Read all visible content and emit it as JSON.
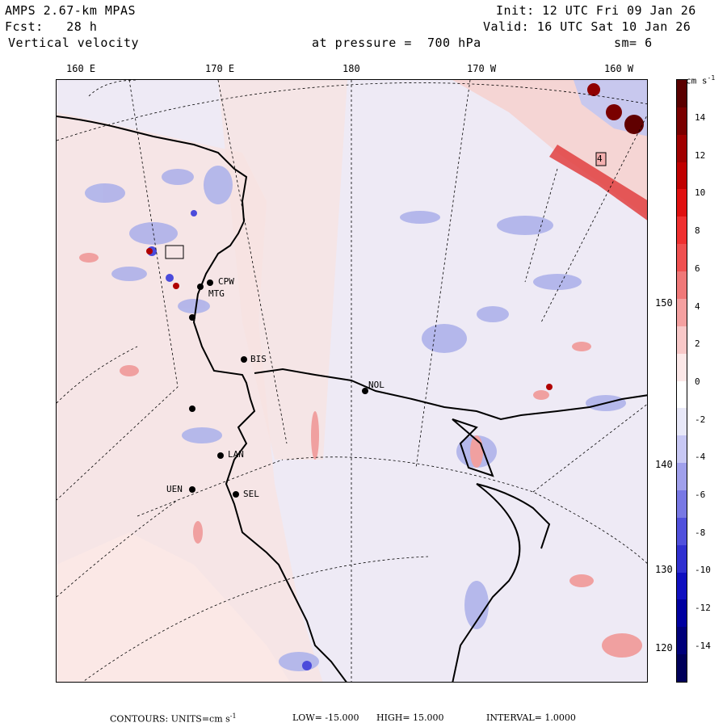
{
  "header": {
    "model": "AMPS 2.67-km MPAS",
    "forecast": "Fcst:   28 h",
    "variable": "Vertical velocity",
    "init": "Init: 12 UTC Fri 09 Jan 26",
    "valid": "Valid: 16 UTC Sat 10 Jan 26",
    "level": "at pressure =  700 hPa",
    "smoothing": "sm= 6"
  },
  "map": {
    "lon_labels": [
      "160 E",
      "170 E",
      "180",
      "170 W",
      "160 W"
    ],
    "lat_labels": [
      "150 W",
      "140 W",
      "130 W",
      "120 W"
    ],
    "stations": [
      {
        "name": "CPW"
      },
      {
        "name": "MTG"
      },
      {
        "name": "BIS"
      },
      {
        "name": "NOL"
      },
      {
        "name": "LAN"
      },
      {
        "name": "SEL"
      },
      {
        "name": "UEN"
      }
    ],
    "highlight_label": "4",
    "colors": {
      "negative": "#3b3bd9",
      "positive": "#d9403b",
      "ocean": "#f0ecf4"
    }
  },
  "colorbar": {
    "units": "cm s",
    "units_exp": "-1",
    "labels": [
      "14",
      "12",
      "10",
      "8",
      "6",
      "4",
      "2",
      "0",
      "-2",
      "-4",
      "-6",
      "-8",
      "-10",
      "-12",
      "-14"
    ],
    "colors": [
      "#5a0000",
      "#7a0000",
      "#a00000",
      "#c00000",
      "#e01010",
      "#f03030",
      "#f05050",
      "#f07878",
      "#f4a0a0",
      "#f8c8c8",
      "#fce8e8",
      "#ffffff",
      "#e8e8f8",
      "#c8c8f4",
      "#a0a0ec",
      "#7878e4",
      "#5050dc",
      "#3030d0",
      "#1010c0",
      "#0000a0",
      "#00007a",
      "#00005a"
    ]
  },
  "footer": {
    "contours": "CONTOURS:  UNITS=cm s",
    "units_exp": "-1",
    "low": "LOW= -15.000",
    "high": "HIGH=  15.000",
    "interval": "INTERVAL=   1.0000"
  }
}
